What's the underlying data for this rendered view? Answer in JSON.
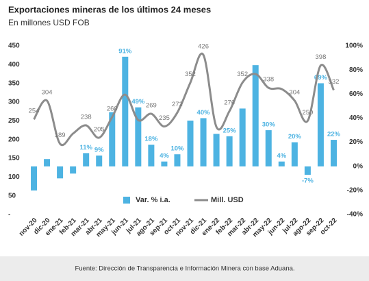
{
  "chart_data": {
    "type": "bar-line",
    "title": "Exportaciones mineras de los últimos 24 meses",
    "subtitle": "En millones USD FOB",
    "source": "Fuente: Dirección de Transparencia e Información Minera con base Aduana.",
    "categories": [
      "nov-20",
      "dic-20",
      "ene-21",
      "feb-21",
      "mar-21",
      "abr-21",
      "may-21",
      "jun-21",
      "jul-21",
      "ago-21",
      "sep-21",
      "oct-21",
      "nov-21",
      "dic-21",
      "ene-22",
      "feb-22",
      "mar-22",
      "abr-22",
      "may-22",
      "jun-22",
      "jul-22",
      "ago-22",
      "sep-22",
      "oct-22"
    ],
    "series": [
      {
        "name": "Var. % i.a.",
        "type": "bar",
        "axis": "y2",
        "color": "#4db3e2",
        "values": [
          -20,
          6,
          -10,
          -6,
          11,
          9,
          45,
          91,
          49,
          18,
          4,
          10,
          38,
          40,
          27,
          25,
          48,
          84,
          30,
          4,
          20,
          -7,
          69,
          22
        ],
        "value_labels": [
          null,
          null,
          null,
          null,
          "11%",
          "9%",
          null,
          "91%",
          "49%",
          "18%",
          "4%",
          "10%",
          null,
          "40%",
          null,
          "25%",
          null,
          null,
          "30%",
          "4%",
          "20%",
          "-7%",
          "69%",
          "22%"
        ]
      },
      {
        "name": "Mill. USD",
        "type": "line",
        "axis": "y",
        "color": "#8c8c8c",
        "values": [
          254,
          304,
          189,
          216,
          238,
          205,
          260,
          320,
          252,
          269,
          235,
          272,
          352,
          426,
          234,
          276,
          352,
          375,
          338,
          335,
          304,
          250,
          398,
          332
        ],
        "value_labels": [
          "254",
          "304",
          "189",
          null,
          "238",
          "205",
          "260",
          null,
          null,
          "269",
          "235",
          "272",
          "352",
          "426",
          null,
          "276",
          "352",
          null,
          "338",
          null,
          "304",
          "250",
          "398",
          "332"
        ]
      }
    ],
    "ylim": [
      0,
      450
    ],
    "yticks": [
      {
        "value": 0,
        "label": "-"
      },
      50,
      100,
      150,
      200,
      250,
      300,
      350,
      400,
      450
    ],
    "y2lim": [
      -40,
      100
    ],
    "y2ticks": [
      {
        "value": -40,
        "label": "-40%"
      },
      {
        "value": -20,
        "label": "-20%"
      },
      {
        "value": 0,
        "label": "0%"
      },
      {
        "value": 20,
        "label": "20%"
      },
      {
        "value": 40,
        "label": "40%"
      },
      {
        "value": 60,
        "label": "60%"
      },
      {
        "value": 80,
        "label": "80%"
      },
      {
        "value": 100,
        "label": "100%"
      }
    ],
    "grid": false
  }
}
